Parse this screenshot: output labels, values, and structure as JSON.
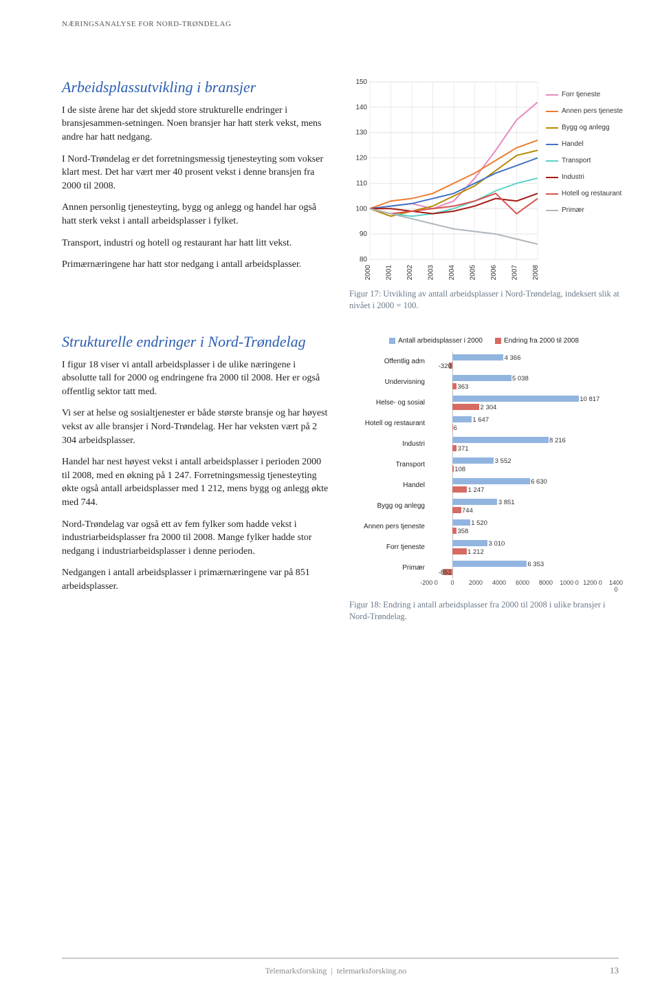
{
  "running_head": "NÆRINGSANALYSE FOR NORD-TRØNDELAG",
  "section1": {
    "title": "Arbeidsplassutvikling i bransjer",
    "p1": "I de siste årene har det skjedd store strukturelle endringer i bransjesammen-setningen. Noen bransjer har hatt sterk vekst, mens andre har hatt nedgang.",
    "p2": "I Nord-Trøndelag er det forretningsmessig tjenesteyting som vokser klart mest. Det har vært mer 40 prosent vekst i denne bransjen fra 2000 til 2008.",
    "p3": "Annen personlig tjenesteyting, bygg og anlegg og handel har også hatt sterk vekst i antall arbeidsplasser i fylket.",
    "p4": "Transport, industri og hotell og restaurant har hatt litt vekst.",
    "p5": "Primærnæringene har hatt stor nedgang i antall arbeidsplasser."
  },
  "section2": {
    "title": "Strukturelle endringer i Nord-Trøndelag",
    "p1": "I figur 18 viser vi antall arbeidsplasser i de ulike næringene i absolutte tall for 2000 og endringene fra 2000 til 2008. Her er også offentlig sektor tatt med.",
    "p2": "Vi ser at helse og sosialtjenester er både største bransje og har høyest vekst av alle bransjer i Nord-Trøndelag. Her har veksten vært på 2 304 arbeidsplasser.",
    "p3": "Handel har nest høyest vekst i antall arbeidsplasser i perioden 2000 til 2008, med en økning på 1 247. Forretningsmessig tjenesteyting økte også antall arbeidsplasser med 1 212, mens bygg og anlegg økte med 744.",
    "p4": "Nord-Trøndelag var også ett av fem fylker som hadde vekst i industriarbeidsplasser fra 2000 til 2008. Mange fylker hadde stor nedgang i industriarbeidsplasser i denne perioden.",
    "p5": "Nedgangen i antall arbeidsplasser i primærnæringene var på 851 arbeidsplasser."
  },
  "fig17": {
    "caption": "Figur 17: Utvikling av antall arbeidsplasser i Nord-Trøndelag, indeksert slik at nivået i 2000 = 100.",
    "x_labels": [
      "2000",
      "2001",
      "2002",
      "2003",
      "2004",
      "2005",
      "2006",
      "2007",
      "2008"
    ],
    "y_ticks": [
      80,
      90,
      100,
      110,
      120,
      130,
      140,
      150
    ],
    "ylim": [
      80,
      150
    ],
    "background": "#ffffff",
    "grid_color": "#d9d9d9",
    "axis_font": 10,
    "series": [
      {
        "name": "Forr tjeneste",
        "color": "#e889c2",
        "values": [
          100,
          101,
          102,
          100,
          103,
          112,
          123,
          135,
          142
        ]
      },
      {
        "name": "Annen pers tjeneste",
        "color": "#ed7d31",
        "values": [
          100,
          103,
          104,
          106,
          110,
          114,
          119,
          124,
          127
        ]
      },
      {
        "name": "Bygg og anlegg",
        "color": "#b58a00",
        "values": [
          100,
          97,
          99,
          101,
          105,
          109,
          115,
          121,
          123
        ]
      },
      {
        "name": "Handel",
        "color": "#4472c4",
        "values": [
          100,
          101,
          102,
          104,
          106,
          110,
          114,
          117,
          120
        ]
      },
      {
        "name": "Transport",
        "color": "#5bd1c9",
        "values": [
          100,
          98,
          97,
          98,
          100,
          103,
          107,
          110,
          112
        ]
      },
      {
        "name": "Industri",
        "color": "#a41a10",
        "values": [
          100,
          100,
          99,
          98,
          99,
          101,
          104,
          103,
          106
        ]
      },
      {
        "name": "Hotell og restaurant",
        "color": "#d9534f",
        "values": [
          100,
          98,
          99,
          100,
          101,
          103,
          106,
          98,
          104
        ]
      },
      {
        "name": "Primær",
        "color": "#b0b7bd",
        "values": [
          100,
          98,
          96,
          94,
          92,
          91,
          90,
          88,
          86
        ]
      }
    ],
    "legend_labels": {
      "forr": "Forr tjeneste",
      "annen": "Annen pers tjeneste",
      "bygg": "Bygg og anlegg",
      "handel": "Handel",
      "transport": "Transport",
      "industri": "Industri",
      "hotell": "Hotell og restaurant",
      "primaer": "Primær"
    }
  },
  "fig18": {
    "caption": "Figur 18: Endring i antall arbeidsplasser fra 2000 til 2008 i ulike bransjer i Nord-Trøndelag.",
    "legend_a": "Antall arbeidsplasser i 2000",
    "legend_b": "Endring fra 2000 til 2008",
    "color_a": "#92b5e0",
    "color_b": "#d66b63",
    "xlim": [
      -2000,
      14000
    ],
    "x_ticks": [
      -2000,
      0,
      2000,
      4000,
      6000,
      8000,
      10000,
      12000,
      14000
    ],
    "x_tick_labels": [
      "-200 0",
      "0",
      "2000",
      "4000",
      "6000",
      "8000",
      "1000 0",
      "1200 0",
      "1400 0"
    ],
    "categories": [
      {
        "label": "Offentlig adm",
        "a": 4366,
        "b": -320
      },
      {
        "label": "Undervisning",
        "a": 5038,
        "b": 363
      },
      {
        "label": "Helse- og sosial",
        "a": 10817,
        "b": 2304
      },
      {
        "label": "Hotell og restaurant",
        "a": 1647,
        "b": 6
      },
      {
        "label": "Industri",
        "a": 8216,
        "b": 371
      },
      {
        "label": "Transport",
        "a": 3552,
        "b": 108
      },
      {
        "label": "Handel",
        "a": 6630,
        "b": 1247
      },
      {
        "label": "Bygg og anlegg",
        "a": 3851,
        "b": 744
      },
      {
        "label": "Annen pers tjeneste",
        "a": 1520,
        "b": 358
      },
      {
        "label": "Forr tjeneste",
        "a": 3010,
        "b": 1212
      },
      {
        "label": "Primær",
        "a": 6353,
        "b": -851
      }
    ]
  },
  "footer": {
    "brand": "Telemarksforsking",
    "site": "telemarksforsking.no",
    "page": "13"
  }
}
